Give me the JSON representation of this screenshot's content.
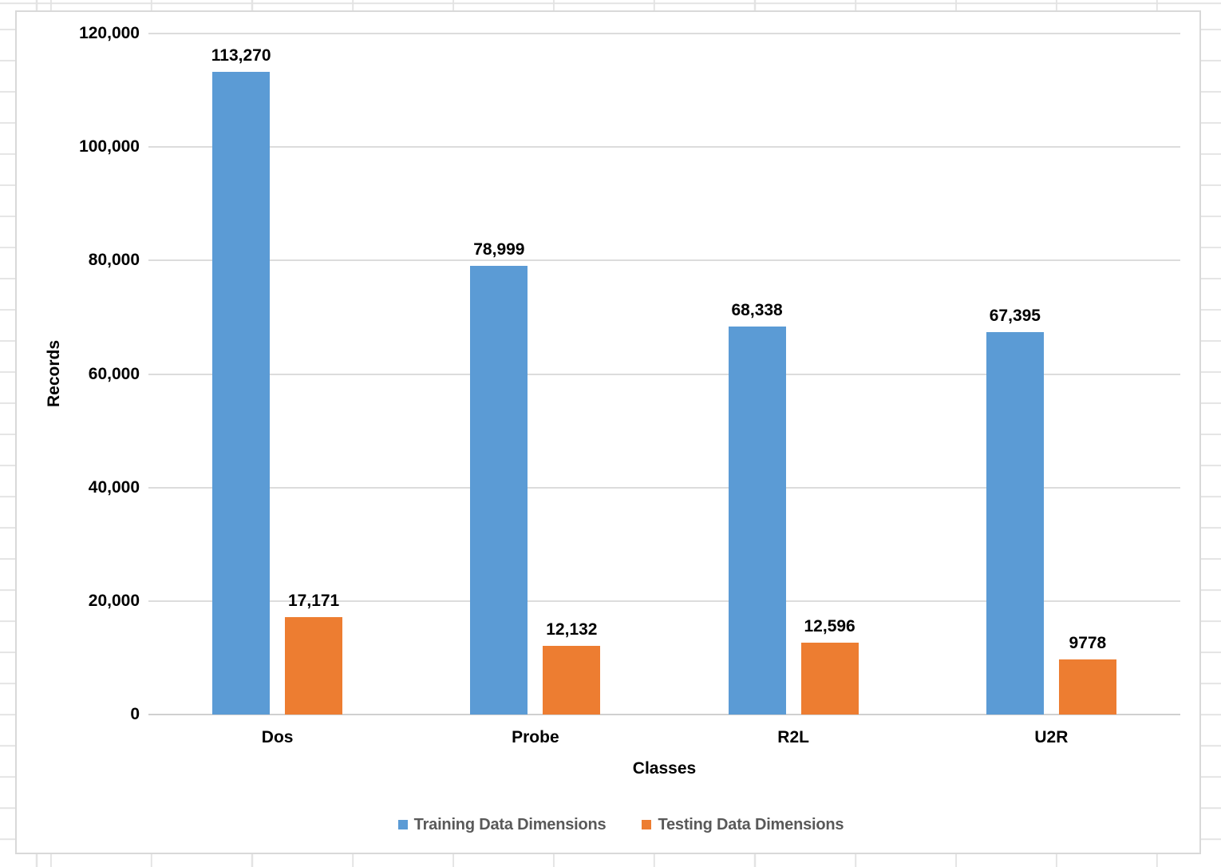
{
  "chart_data": {
    "type": "bar",
    "title": "",
    "xlabel": "Classes",
    "ylabel": "Records",
    "categories": [
      "Dos",
      "Probe",
      "R2L",
      "U2R"
    ],
    "series": [
      {
        "name": "Training Data Dimensions",
        "color": "#5B9BD5",
        "values": [
          113270,
          78999,
          68338,
          67395
        ],
        "labels": [
          "113,270",
          "78,999",
          "68,338",
          "67,395"
        ]
      },
      {
        "name": "Testing Data Dimensions",
        "color": "#ED7D31",
        "values": [
          17171,
          12132,
          12596,
          9778
        ],
        "labels": [
          "17,171",
          "12,132",
          "12,596",
          "9778"
        ]
      }
    ],
    "ylim": [
      0,
      120000
    ],
    "ytick_interval": 20000,
    "yticks": [
      "0",
      "20,000",
      "40,000",
      "60,000",
      "80,000",
      "100,000",
      "120,000"
    ],
    "grid": "horizontal",
    "legend_position": "bottom"
  },
  "colors": {
    "gridline": "#DCDCDC",
    "chart_border": "#D9D9D9",
    "axis_line": "#D0D0D0",
    "legend_text": "#595959",
    "label_text": "#000000",
    "background": "#FFFFFF"
  }
}
